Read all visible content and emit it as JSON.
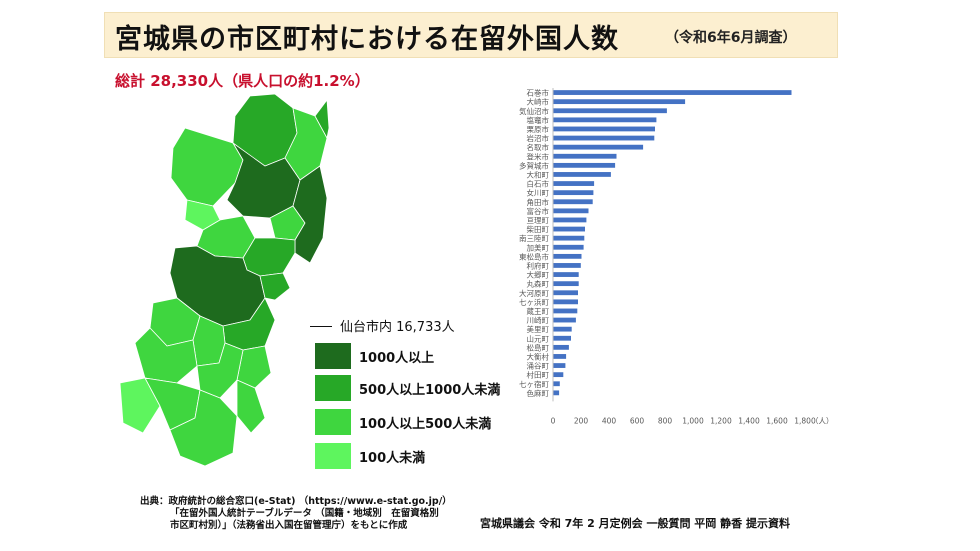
{
  "title": {
    "main": "宮城県の市区町村における在留外国人数",
    "sub": "（令和6年6月調査）"
  },
  "total_text": "総計 28,330人（県人口の約1.2%）",
  "map": {
    "sendai_label": "仙台市内 16,733人",
    "municipalities": [
      "栗原市",
      "登米市",
      "気仙沼市",
      "南三陸町",
      "石巻市",
      "女川町",
      "大崎市",
      "加美町",
      "色麻町",
      "涌谷町",
      "美里町",
      "大衡村",
      "大和町",
      "富谷市",
      "利府町",
      "松島町",
      "七ヶ浜町",
      "塩竈市",
      "多賀城市",
      "東松島市",
      "仙台市",
      "名取市",
      "岩沼市",
      "亘理町",
      "山元町",
      "角田市",
      "丸森町",
      "柴田町",
      "村田町",
      "川崎町",
      "大河原町",
      "蔵王町",
      "七ヶ宿町",
      "白石市"
    ]
  },
  "legend": [
    {
      "label": "1000人以上",
      "color": "#1e6b1e"
    },
    {
      "label": "500人以上1000人未満",
      "color": "#27a827"
    },
    {
      "label": "100人以上500人未満",
      "color": "#3fd63f"
    },
    {
      "label": "100人未満",
      "color": "#5ef55e"
    }
  ],
  "footer": {
    "source_line1": "出典：政府統計の総合窓口(e-Stat) （https://www.e-stat.go.jp/）",
    "source_line2": "「在留外国人統計テーブルデータ （国籍・地域別　在留資格別",
    "source_line3": "市区町村別）」（法務省出入国在留管理庁）をもとに作成",
    "right": "宮城県議会 令和 7年 2 月定例会 一般質問 平岡 静香 提示資料"
  },
  "chart_data": {
    "type": "bar",
    "orientation": "horizontal",
    "categories": [
      "石巻市",
      "大崎市",
      "気仙沼市",
      "塩竈市",
      "栗原市",
      "岩沼市",
      "名取市",
      "登米市",
      "多賀城市",
      "大和町",
      "白石市",
      "女川町",
      "角田市",
      "富谷市",
      "亘理町",
      "柴田町",
      "南三陸町",
      "加美町",
      "東松島市",
      "利府町",
      "大郷町",
      "丸森町",
      "大河原町",
      "七ヶ浜町",
      "蔵王町",
      "川崎町",
      "美里町",
      "山元町",
      "松島町",
      "大衡村",
      "涌谷町",
      "村田町",
      "七ヶ宿町",
      "色麻町"
    ],
    "values": [
      1700,
      940,
      810,
      735,
      725,
      720,
      640,
      450,
      440,
      410,
      290,
      285,
      280,
      250,
      235,
      225,
      220,
      215,
      200,
      195,
      180,
      180,
      175,
      175,
      170,
      160,
      130,
      125,
      110,
      90,
      85,
      70,
      45,
      40
    ],
    "xlim": [
      0,
      1800
    ],
    "xticks": [
      "0",
      "200",
      "400",
      "600",
      "800",
      "1,000",
      "1,200",
      "1,400",
      "1,600",
      "1,800"
    ],
    "xunit": "（人）",
    "bar_color": "#4472c4",
    "grid": false,
    "legend": "none"
  }
}
